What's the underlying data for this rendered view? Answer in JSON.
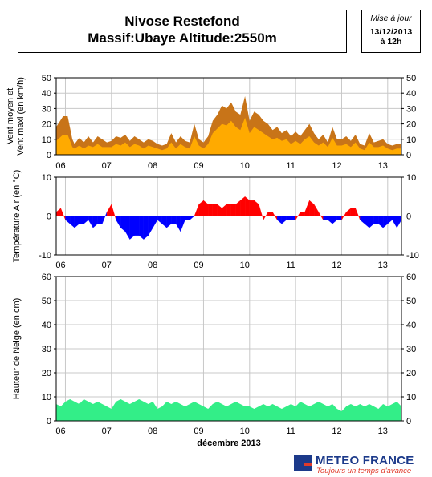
{
  "header": {
    "title": "Nivose Restefond",
    "subtitle": "Massif:Ubaye Altitude:2550m",
    "update_label": "Mise à jour",
    "update_date": "13/12/2013",
    "update_time": "à 12h"
  },
  "brand": {
    "name": "METEO FRANCE",
    "slogan": "Toujours un temps d'avance"
  },
  "colors": {
    "wind_max": "#c87418",
    "wind_mean": "#ffaa00",
    "temp_pos": "#ff0000",
    "temp_neg": "#0000ff",
    "snow": "#33ee88",
    "grid": "#c8c8c8"
  },
  "chart_data": [
    {
      "type": "area",
      "ylabel": "Vent moyen et Vent maxi (en km/h)",
      "ylim": [
        0,
        50
      ],
      "yticks": [
        0,
        10,
        20,
        30,
        40,
        50
      ],
      "x_ticks": [
        "06",
        "07",
        "08",
        "09",
        "10",
        "11",
        "12",
        "13"
      ],
      "x_range_days": [
        5.8,
        13.3
      ],
      "grid": true,
      "series": [
        {
          "name": "",
          "x": [
            5.8,
            5.95,
            6.05,
            6.15,
            6.2,
            6.3,
            6.4,
            6.5,
            6.6,
            6.7,
            6.8,
            6.9,
            7.0,
            7.1,
            7.2,
            7.3,
            7.4,
            7.5,
            7.6,
            7.7,
            7.8,
            7.9,
            8.0,
            8.1,
            8.2,
            8.3,
            8.4,
            8.5,
            8.6,
            8.7,
            8.8,
            8.9,
            9.0,
            9.1,
            9.2,
            9.3,
            9.4,
            9.5,
            9.6,
            9.7,
            9.8,
            9.9,
            10.0,
            10.1,
            10.2,
            10.3,
            10.4,
            10.5,
            10.6,
            10.7,
            10.8,
            10.9,
            11.0,
            11.1,
            11.2,
            11.3,
            11.4,
            11.5,
            11.6,
            11.7,
            11.8,
            11.9,
            12.0,
            12.1,
            12.2,
            12.3,
            12.4,
            12.5,
            12.6,
            12.7,
            12.8,
            12.9,
            13.0,
            13.1,
            13.2,
            13.3
          ],
          "values": [
            18,
            25,
            25,
            10,
            7,
            11,
            8,
            12,
            8,
            12,
            10,
            8,
            9,
            12,
            11,
            13,
            9,
            12,
            10,
            8,
            10,
            9,
            7,
            6,
            7,
            14,
            8,
            12,
            9,
            8,
            20,
            10,
            8,
            12,
            22,
            26,
            32,
            30,
            34,
            28,
            26,
            38,
            22,
            28,
            26,
            22,
            20,
            16,
            18,
            14,
            16,
            12,
            15,
            12,
            16,
            20,
            14,
            10,
            13,
            8,
            18,
            10,
            10,
            12,
            9,
            13,
            7,
            6,
            14,
            8,
            9,
            10,
            7,
            6,
            7,
            7
          ]
        },
        {
          "name": "",
          "x": [
            5.8,
            5.95,
            6.05,
            6.15,
            6.2,
            6.3,
            6.4,
            6.5,
            6.6,
            6.7,
            6.8,
            6.9,
            7.0,
            7.1,
            7.2,
            7.3,
            7.4,
            7.5,
            7.6,
            7.7,
            7.8,
            7.9,
            8.0,
            8.1,
            8.2,
            8.3,
            8.4,
            8.5,
            8.6,
            8.7,
            8.8,
            8.9,
            9.0,
            9.1,
            9.2,
            9.3,
            9.4,
            9.5,
            9.6,
            9.7,
            9.8,
            9.9,
            10.0,
            10.1,
            10.2,
            10.3,
            10.4,
            10.5,
            10.6,
            10.7,
            10.8,
            10.9,
            11.0,
            11.1,
            11.2,
            11.3,
            11.4,
            11.5,
            11.6,
            11.7,
            11.8,
            11.9,
            12.0,
            12.1,
            12.2,
            12.3,
            12.4,
            12.5,
            12.6,
            12.7,
            12.8,
            12.9,
            13.0,
            13.1,
            13.2,
            13.3
          ],
          "values": [
            9,
            13,
            13,
            5,
            4,
            6,
            4,
            6,
            5,
            7,
            5,
            5,
            5,
            7,
            6,
            8,
            5,
            7,
            6,
            4,
            6,
            5,
            4,
            3,
            4,
            8,
            4,
            7,
            5,
            4,
            12,
            6,
            4,
            7,
            14,
            17,
            20,
            19,
            22,
            18,
            16,
            24,
            14,
            18,
            16,
            14,
            12,
            10,
            11,
            9,
            10,
            7,
            9,
            7,
            10,
            12,
            8,
            6,
            8,
            5,
            11,
            6,
            6,
            7,
            5,
            8,
            4,
            3,
            8,
            5,
            5,
            6,
            4,
            3,
            4,
            4
          ]
        }
      ]
    },
    {
      "type": "area",
      "ylabel": "Température Air (en °C)",
      "ylim": [
        -10,
        10
      ],
      "yticks": [
        -10,
        0,
        10
      ],
      "x_ticks": [
        "06",
        "07",
        "08",
        "09",
        "10",
        "11",
        "12",
        "13"
      ],
      "x_range_days": [
        5.8,
        13.3
      ],
      "grid": true,
      "series": [
        {
          "name": "",
          "x": [
            5.8,
            5.9,
            6.0,
            6.1,
            6.2,
            6.3,
            6.4,
            6.5,
            6.6,
            6.7,
            6.8,
            6.9,
            7.0,
            7.1,
            7.2,
            7.3,
            7.4,
            7.5,
            7.6,
            7.7,
            7.8,
            7.9,
            8.0,
            8.1,
            8.2,
            8.3,
            8.4,
            8.5,
            8.6,
            8.7,
            8.8,
            8.9,
            9.0,
            9.1,
            9.2,
            9.3,
            9.4,
            9.5,
            9.6,
            9.7,
            9.8,
            9.9,
            10.0,
            10.1,
            10.2,
            10.3,
            10.4,
            10.5,
            10.6,
            10.7,
            10.8,
            10.9,
            11.0,
            11.1,
            11.2,
            11.3,
            11.4,
            11.5,
            11.6,
            11.7,
            11.8,
            11.9,
            12.0,
            12.1,
            12.2,
            12.3,
            12.4,
            12.5,
            12.6,
            12.7,
            12.8,
            12.9,
            13.0,
            13.1,
            13.2,
            13.3
          ],
          "values": [
            1,
            2,
            -1,
            -2,
            -3,
            -2,
            -2,
            -1,
            -3,
            -2,
            -2,
            1,
            3,
            -1,
            -3,
            -4,
            -6,
            -5,
            -5,
            -6,
            -5,
            -3,
            -1,
            -2,
            -3,
            -2,
            -2,
            -4,
            -1,
            -1,
            0,
            3,
            4,
            3,
            3,
            3,
            2,
            3,
            3,
            3,
            4,
            5,
            4,
            4,
            3,
            -1,
            1,
            1,
            -1,
            -2,
            -1,
            -1,
            -1,
            1,
            1,
            4,
            3,
            1,
            -1,
            -1,
            -2,
            -1,
            -1,
            1,
            2,
            2,
            -1,
            -2,
            -3,
            -2,
            -2,
            -3,
            -2,
            -1,
            -3,
            -1
          ]
        }
      ]
    },
    {
      "type": "area",
      "ylabel": "Hauteur de Neige (en cm)",
      "xlabel": "décembre 2013",
      "ylim": [
        0,
        60
      ],
      "yticks": [
        0,
        10,
        20,
        30,
        40,
        50,
        60
      ],
      "x_ticks": [
        "06",
        "07",
        "08",
        "09",
        "10",
        "11",
        "12",
        "13"
      ],
      "x_range_days": [
        5.8,
        13.3
      ],
      "grid": true,
      "series": [
        {
          "name": "",
          "x": [
            5.8,
            5.9,
            6.0,
            6.1,
            6.2,
            6.3,
            6.4,
            6.5,
            6.6,
            6.7,
            6.8,
            6.9,
            7.0,
            7.1,
            7.2,
            7.3,
            7.4,
            7.5,
            7.6,
            7.7,
            7.8,
            7.9,
            8.0,
            8.1,
            8.2,
            8.3,
            8.4,
            8.5,
            8.6,
            8.7,
            8.8,
            8.9,
            9.0,
            9.1,
            9.2,
            9.3,
            9.4,
            9.5,
            9.6,
            9.7,
            9.8,
            9.9,
            10.0,
            10.1,
            10.2,
            10.3,
            10.4,
            10.5,
            10.6,
            10.7,
            10.8,
            10.9,
            11.0,
            11.1,
            11.2,
            11.3,
            11.4,
            11.5,
            11.6,
            11.7,
            11.8,
            11.9,
            12.0,
            12.1,
            12.2,
            12.3,
            12.4,
            12.5,
            12.6,
            12.7,
            12.8,
            12.9,
            13.0,
            13.1,
            13.2,
            13.3
          ],
          "values": [
            7,
            6,
            8,
            9,
            8,
            7,
            9,
            8,
            7,
            8,
            7,
            6,
            5,
            8,
            9,
            8,
            7,
            8,
            9,
            8,
            7,
            8,
            5,
            6,
            8,
            7,
            8,
            7,
            6,
            7,
            8,
            7,
            6,
            5,
            7,
            8,
            7,
            6,
            7,
            8,
            7,
            6,
            6,
            5,
            6,
            7,
            6,
            7,
            6,
            5,
            6,
            7,
            6,
            8,
            7,
            6,
            7,
            8,
            7,
            6,
            7,
            5,
            4,
            6,
            7,
            6,
            7,
            6,
            7,
            6,
            5,
            7,
            6,
            7,
            8,
            6
          ]
        }
      ]
    }
  ]
}
